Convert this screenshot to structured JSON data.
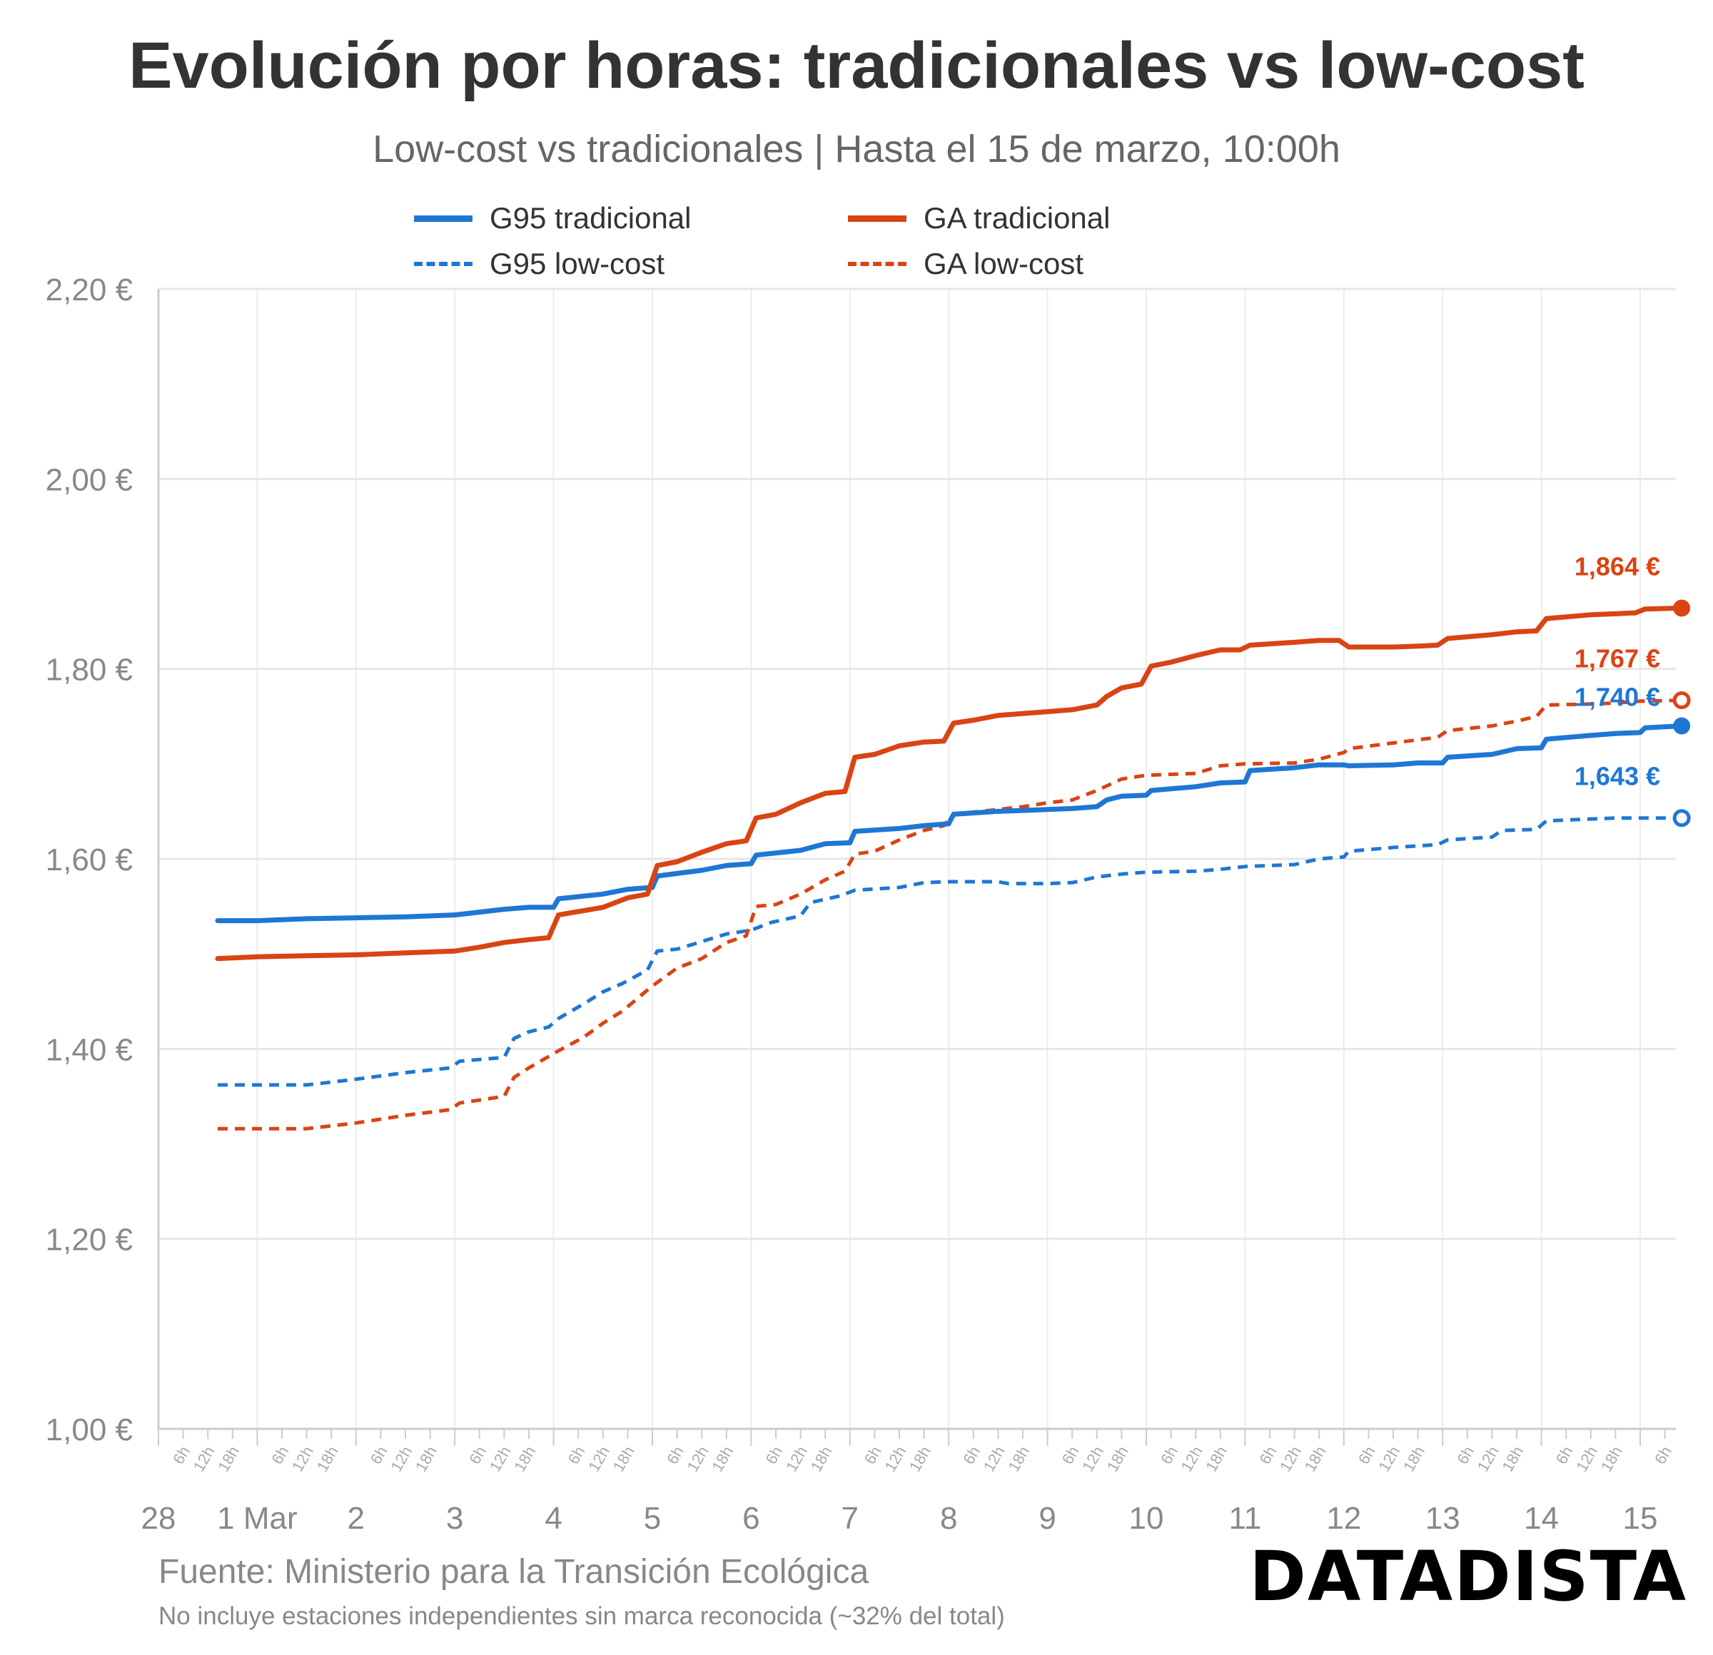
{
  "header": {
    "title": "Evolución por horas: tradicionales vs low-cost",
    "subtitle": "Low-cost vs tradicionales | Hasta el 15 de marzo, 10:00h"
  },
  "footer": {
    "source": "Fuente: Ministerio para la Transición Ecológica",
    "note": "No incluye estaciones independientes sin marca reconocida (~32% del total)",
    "brand": "DATADISTA"
  },
  "chart_data": {
    "type": "line",
    "title": "Evolución por horas: tradicionales vs low-cost",
    "subtitle": "Low-cost vs tradicionales | Hasta el 15 de marzo, 10:00h",
    "x_unit": "days since 28 Feb 00:00",
    "xlim": [
      0,
      15.42
    ],
    "ylim": [
      1.0,
      2.2
    ],
    "y_ticks": [
      1.0,
      1.2,
      1.4,
      1.6,
      1.8,
      2.0,
      2.2
    ],
    "y_tick_labels": [
      "1,00 €",
      "1,20 €",
      "1,40 €",
      "1,60 €",
      "1,80 €",
      "2,00 €",
      "2,20 €"
    ],
    "x_day_ticks": [
      0,
      1,
      2,
      3,
      4,
      5,
      6,
      7,
      8,
      9,
      10,
      11,
      12,
      13,
      14,
      15
    ],
    "x_day_labels": [
      "28",
      "1 Mar",
      "2",
      "3",
      "4",
      "5",
      "6",
      "7",
      "8",
      "9",
      "10",
      "11",
      "12",
      "13",
      "14",
      "15"
    ],
    "hour_labels": [
      "6h",
      "12h",
      "18h"
    ],
    "legend_position": "top",
    "grid": true,
    "series": [
      {
        "name": "G95 tradicional",
        "color": "#1f77d4",
        "style": "solid",
        "end_label": "1,740 €",
        "end_marker": "filled",
        "x": [
          0.6,
          1.0,
          1.5,
          2.0,
          2.5,
          3.0,
          3.25,
          3.5,
          3.75,
          4.0,
          4.05,
          4.5,
          4.75,
          5.0,
          5.05,
          5.5,
          5.75,
          6.0,
          6.05,
          6.5,
          6.75,
          7.0,
          7.05,
          7.5,
          7.75,
          8.0,
          8.05,
          8.5,
          8.75,
          9.0,
          9.25,
          9.5,
          9.6,
          9.75,
          10.0,
          10.05,
          10.5,
          10.75,
          11.0,
          11.05,
          11.5,
          11.75,
          12.0,
          12.05,
          12.5,
          12.75,
          13.0,
          13.05,
          13.5,
          13.75,
          14.0,
          14.05,
          14.5,
          14.75,
          15.0,
          15.05,
          15.42
        ],
        "values": [
          1.535,
          1.535,
          1.537,
          1.538,
          1.539,
          1.541,
          1.544,
          1.547,
          1.549,
          1.549,
          1.558,
          1.563,
          1.568,
          1.57,
          1.582,
          1.588,
          1.593,
          1.595,
          1.604,
          1.609,
          1.616,
          1.617,
          1.629,
          1.632,
          1.635,
          1.637,
          1.647,
          1.65,
          1.651,
          1.652,
          1.653,
          1.655,
          1.662,
          1.666,
          1.667,
          1.672,
          1.676,
          1.68,
          1.681,
          1.693,
          1.696,
          1.699,
          1.699,
          1.698,
          1.699,
          1.701,
          1.701,
          1.707,
          1.71,
          1.716,
          1.717,
          1.726,
          1.73,
          1.732,
          1.733,
          1.738,
          1.74
        ]
      },
      {
        "name": "GA tradicional",
        "color": "#d94414",
        "style": "solid",
        "end_label": "1,864 €",
        "end_marker": "filled",
        "x": [
          0.6,
          1.0,
          1.5,
          2.0,
          2.5,
          3.0,
          3.25,
          3.5,
          3.75,
          3.95,
          4.05,
          4.5,
          4.75,
          4.95,
          5.05,
          5.25,
          5.5,
          5.75,
          5.95,
          6.05,
          6.25,
          6.5,
          6.75,
          6.95,
          7.05,
          7.25,
          7.5,
          7.75,
          7.95,
          8.05,
          8.25,
          8.5,
          8.75,
          9.0,
          9.25,
          9.5,
          9.6,
          9.75,
          9.95,
          10.05,
          10.25,
          10.5,
          10.75,
          10.95,
          11.05,
          11.5,
          11.75,
          11.95,
          12.05,
          12.5,
          12.75,
          12.95,
          13.05,
          13.5,
          13.75,
          13.95,
          14.05,
          14.5,
          14.75,
          14.95,
          15.05,
          15.42
        ],
        "values": [
          1.495,
          1.497,
          1.498,
          1.499,
          1.501,
          1.503,
          1.507,
          1.512,
          1.515,
          1.517,
          1.541,
          1.549,
          1.559,
          1.563,
          1.593,
          1.597,
          1.607,
          1.616,
          1.619,
          1.643,
          1.647,
          1.659,
          1.669,
          1.671,
          1.707,
          1.71,
          1.719,
          1.723,
          1.724,
          1.743,
          1.746,
          1.751,
          1.753,
          1.755,
          1.757,
          1.762,
          1.771,
          1.78,
          1.784,
          1.803,
          1.807,
          1.814,
          1.82,
          1.82,
          1.825,
          1.828,
          1.83,
          1.83,
          1.823,
          1.823,
          1.824,
          1.825,
          1.832,
          1.836,
          1.839,
          1.84,
          1.853,
          1.857,
          1.858,
          1.859,
          1.863,
          1.864
        ]
      },
      {
        "name": "G95 low-cost",
        "color": "#1f77d4",
        "style": "dashed",
        "end_label": "1,643 €",
        "end_marker": "open",
        "x": [
          0.6,
          1.5,
          2.0,
          2.5,
          2.95,
          3.05,
          3.5,
          3.6,
          3.75,
          3.95,
          4.05,
          4.3,
          4.5,
          4.7,
          4.95,
          5.05,
          5.25,
          5.5,
          5.75,
          6.0,
          6.2,
          6.5,
          6.6,
          6.9,
          7.05,
          7.5,
          7.75,
          8.0,
          8.5,
          8.6,
          9.0,
          9.25,
          9.5,
          9.75,
          10.0,
          10.5,
          10.75,
          11.0,
          11.5,
          11.75,
          12.0,
          12.05,
          12.5,
          12.95,
          13.05,
          13.5,
          13.6,
          13.95,
          14.05,
          14.5,
          14.75,
          15.42
        ],
        "values": [
          1.362,
          1.362,
          1.368,
          1.375,
          1.38,
          1.387,
          1.391,
          1.411,
          1.418,
          1.423,
          1.432,
          1.447,
          1.46,
          1.469,
          1.483,
          1.503,
          1.505,
          1.513,
          1.521,
          1.525,
          1.533,
          1.54,
          1.554,
          1.561,
          1.567,
          1.57,
          1.575,
          1.576,
          1.576,
          1.574,
          1.574,
          1.575,
          1.581,
          1.584,
          1.586,
          1.587,
          1.589,
          1.592,
          1.594,
          1.6,
          1.602,
          1.608,
          1.612,
          1.615,
          1.62,
          1.623,
          1.63,
          1.631,
          1.64,
          1.642,
          1.643,
          1.643
        ]
      },
      {
        "name": "GA low-cost",
        "color": "#d94414",
        "style": "dashed",
        "end_label": "1,767 €",
        "end_marker": "open",
        "x": [
          0.6,
          1.5,
          2.0,
          2.5,
          2.95,
          3.05,
          3.5,
          3.6,
          3.75,
          3.95,
          4.05,
          4.3,
          4.5,
          4.7,
          4.95,
          5.05,
          5.25,
          5.5,
          5.75,
          5.95,
          6.05,
          6.25,
          6.5,
          6.75,
          6.95,
          7.05,
          7.25,
          7.5,
          7.75,
          7.95,
          8.05,
          8.5,
          8.75,
          9.0,
          9.25,
          9.5,
          9.75,
          10.0,
          10.5,
          10.75,
          11.0,
          11.5,
          11.75,
          12.0,
          12.05,
          12.5,
          12.95,
          13.05,
          13.5,
          13.75,
          13.95,
          14.05,
          14.5,
          14.75,
          15.0,
          15.42
        ],
        "values": [
          1.316,
          1.316,
          1.322,
          1.33,
          1.336,
          1.343,
          1.35,
          1.37,
          1.38,
          1.392,
          1.398,
          1.412,
          1.427,
          1.44,
          1.462,
          1.47,
          1.485,
          1.495,
          1.512,
          1.519,
          1.55,
          1.552,
          1.563,
          1.578,
          1.587,
          1.605,
          1.608,
          1.62,
          1.63,
          1.635,
          1.647,
          1.652,
          1.655,
          1.659,
          1.662,
          1.672,
          1.684,
          1.688,
          1.69,
          1.698,
          1.7,
          1.701,
          1.705,
          1.712,
          1.716,
          1.722,
          1.728,
          1.735,
          1.74,
          1.745,
          1.75,
          1.762,
          1.763,
          1.764,
          1.766,
          1.767
        ]
      }
    ]
  }
}
